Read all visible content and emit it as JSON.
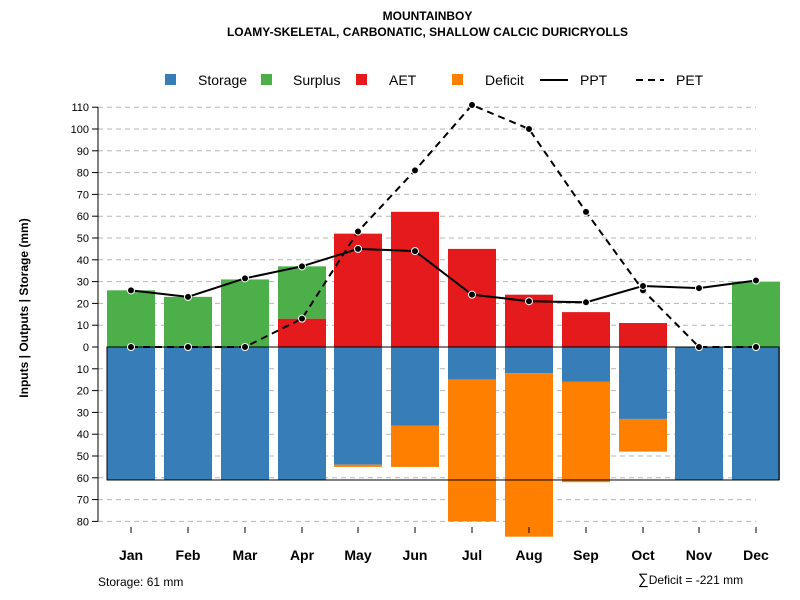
{
  "titles": {
    "line1": "MOUNTAINBOY",
    "line2": "LOAMY-SKELETAL, CARBONATIC, SHALLOW CALCIC DURICRYOLLS"
  },
  "notes": {
    "storage": "Storage: 61 mm",
    "deficit_symbol": "∑",
    "deficit": "Deficit = -221 mm"
  },
  "colors": {
    "storage": "#377eb8",
    "surplus": "#4daf4a",
    "aet": "#e41a1c",
    "deficit": "#ff7f00"
  },
  "chart_data": {
    "type": "bar",
    "categories": [
      "Jan",
      "Feb",
      "Mar",
      "Apr",
      "May",
      "Jun",
      "Jul",
      "Aug",
      "Sep",
      "Oct",
      "Nov",
      "Dec"
    ],
    "ylabel": "Inputs | Outputs | Storage    (mm)",
    "ylim_top": [
      0,
      110
    ],
    "ylim_bottom": [
      0,
      80
    ],
    "yticks_top": [
      0,
      10,
      20,
      30,
      40,
      50,
      60,
      70,
      80,
      90,
      100,
      110
    ],
    "yticks_bottom": [
      10,
      20,
      30,
      40,
      50,
      60,
      70,
      80
    ],
    "storage_capacity": 61,
    "legend": [
      "Storage",
      "Surplus",
      "AET",
      "Deficit",
      "PPT",
      "PET"
    ],
    "series": [
      {
        "name": "AET",
        "values": [
          0,
          0,
          0,
          13,
          52,
          62,
          45,
          24,
          16,
          11,
          0,
          0
        ]
      },
      {
        "name": "Surplus",
        "values": [
          26,
          23,
          31,
          24,
          0,
          0,
          0,
          0,
          0,
          0,
          0,
          30
        ]
      },
      {
        "name": "Storage",
        "values": [
          61,
          61,
          61,
          61,
          54,
          36,
          15,
          12,
          16,
          33,
          61,
          61
        ]
      },
      {
        "name": "Deficit",
        "values": [
          0,
          0,
          0,
          0,
          1,
          19,
          65,
          75,
          46,
          15,
          0,
          0
        ]
      },
      {
        "name": "PPT",
        "values": [
          26,
          23,
          31.5,
          37,
          45,
          44,
          24,
          21,
          20.5,
          28,
          27,
          30.5
        ]
      },
      {
        "name": "PET",
        "values": [
          0,
          0,
          0,
          13,
          53,
          81,
          111,
          100,
          62,
          26,
          0,
          0
        ]
      }
    ]
  }
}
